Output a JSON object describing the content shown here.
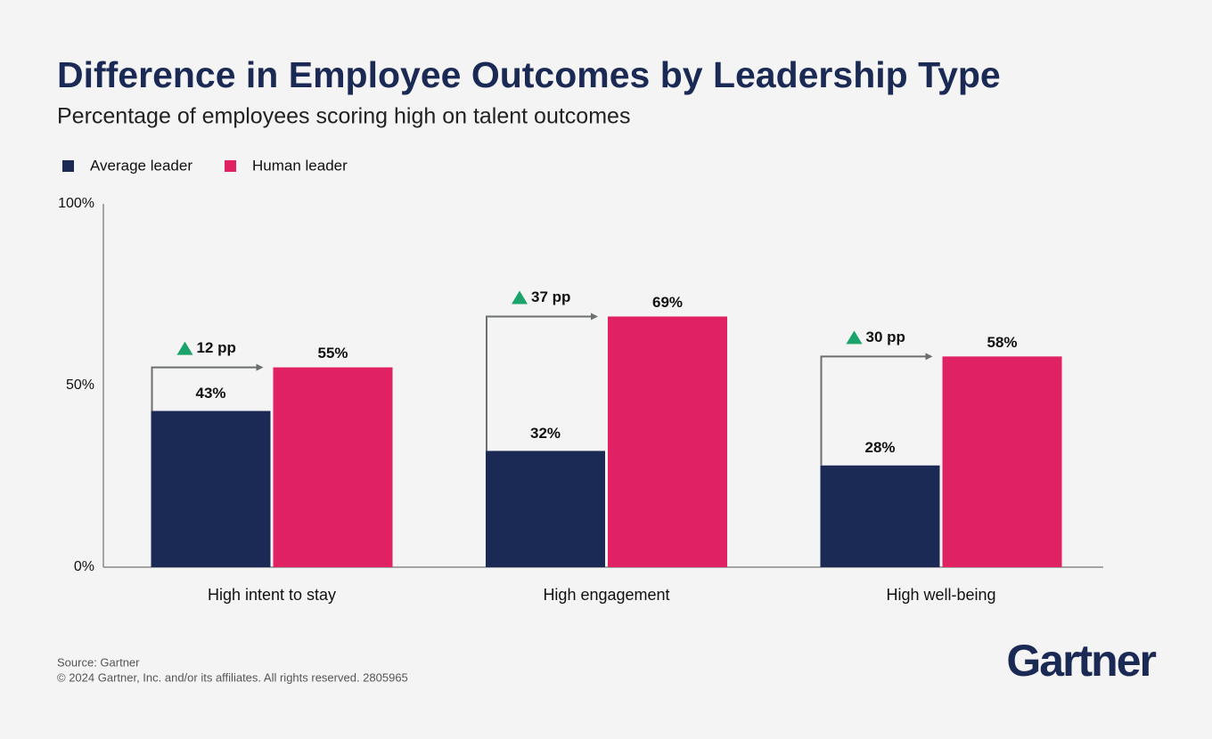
{
  "chart_data": {
    "type": "bar",
    "title": "Difference in Employee Outcomes by Leadership Type",
    "subtitle": "Percentage of employees scoring high on talent outcomes",
    "categories": [
      "High intent to stay",
      "High engagement",
      "High well-being"
    ],
    "series": [
      {
        "name": "Average leader",
        "color": "#1b2a55",
        "values": [
          43,
          32,
          28
        ],
        "value_labels": [
          "43%",
          "32%",
          "28%"
        ]
      },
      {
        "name": "Human leader",
        "color": "#e02163",
        "values": [
          55,
          69,
          58
        ],
        "value_labels": [
          "55%",
          "69%",
          "58%"
        ]
      }
    ],
    "annotations": [
      "12 pp",
      "37 pp",
      "30 pp"
    ],
    "ylim": [
      0,
      100
    ],
    "yticks": [
      {
        "value": 0,
        "label": "0%"
      },
      {
        "value": 50,
        "label": "50%"
      },
      {
        "value": 100,
        "label": "100%"
      }
    ],
    "grid": false
  },
  "source": "Source: Gartner",
  "copyright": "© 2024 Gartner, Inc. and/or its affiliates. All rights reserved. 2805965",
  "logo": "Gartner"
}
